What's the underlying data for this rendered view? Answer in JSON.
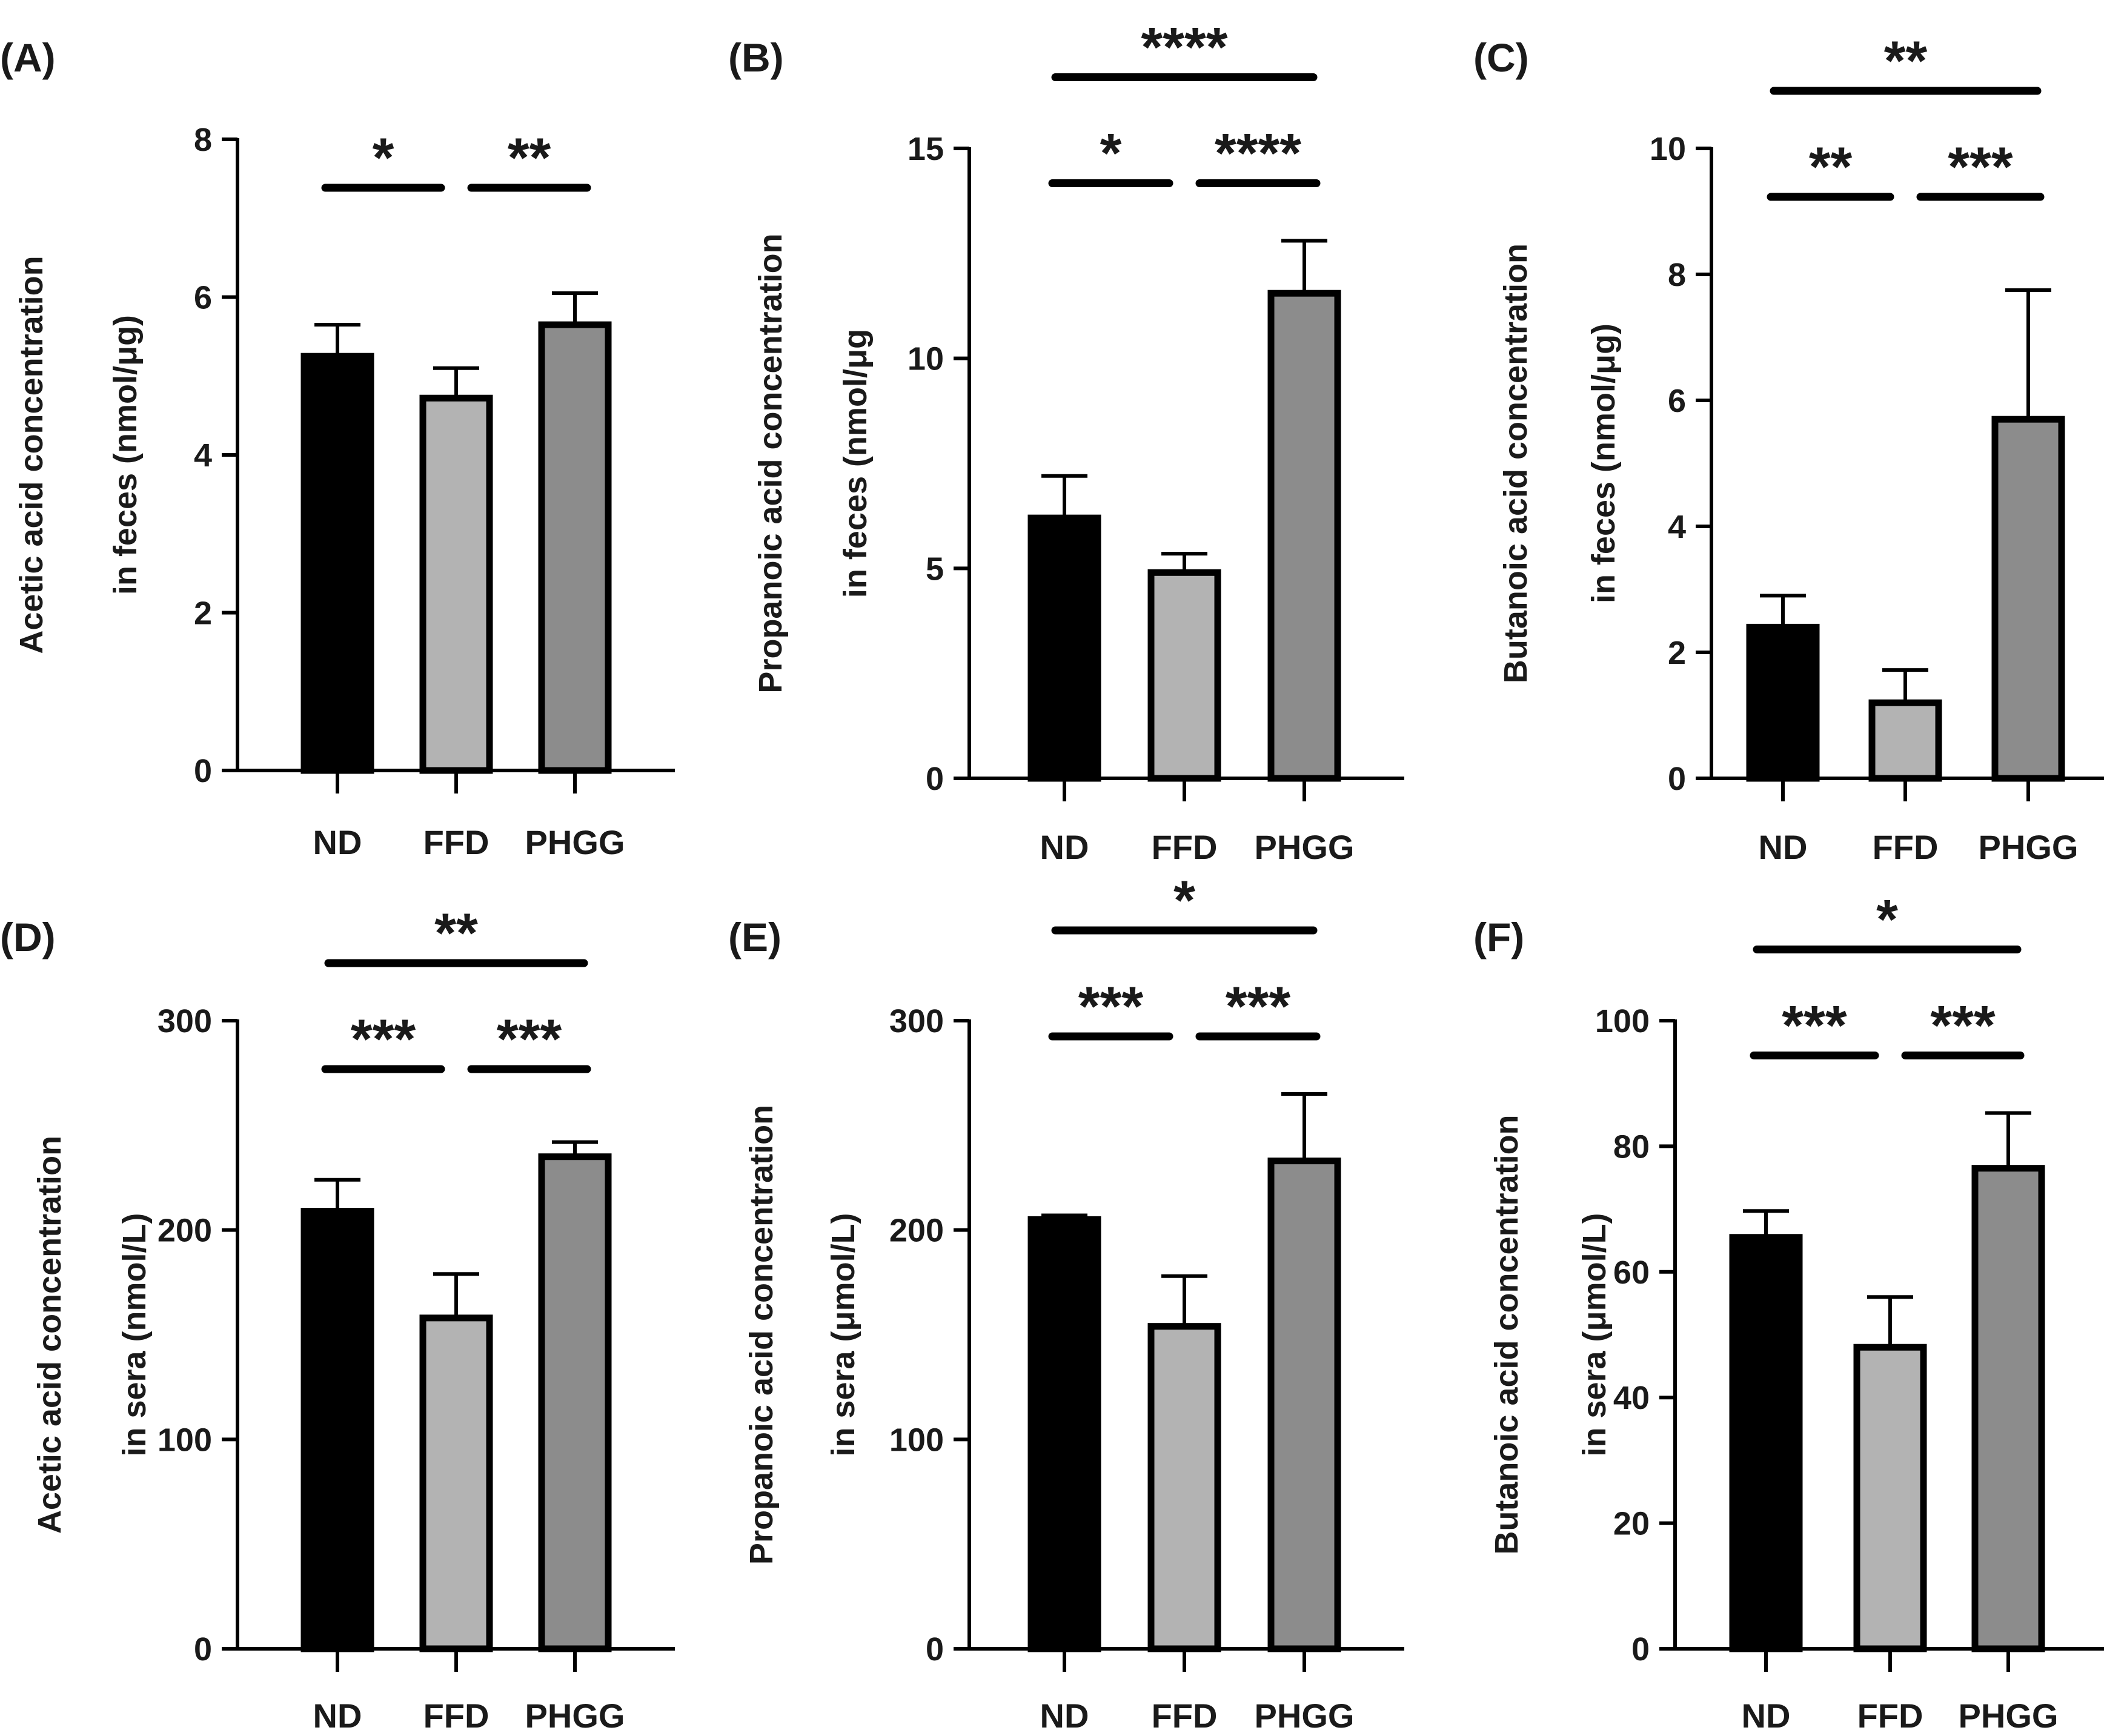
{
  "chart_data": [
    {
      "type": "bar",
      "panel_label": "(A)",
      "ylabel_lines": [
        "Acetic acid concentration",
        "in feces (nmol/μg)"
      ],
      "categories": [
        "ND",
        "FFD",
        "PHGG"
      ],
      "values": [
        5.25,
        4.72,
        5.65
      ],
      "errors": [
        0.4,
        0.38,
        0.4
      ],
      "colors": [
        "#000000",
        "#b3b3b3",
        "#8c8c8c"
      ],
      "ylim": [
        0,
        8
      ],
      "yticks": [
        "0",
        "2",
        "4",
        "6",
        "8"
      ],
      "significance": [
        {
          "from": 0,
          "to": 1,
          "label": "*",
          "level": 0
        },
        {
          "from": 1,
          "to": 2,
          "label": "**",
          "level": 0
        }
      ]
    },
    {
      "type": "bar",
      "panel_label": "(B)",
      "ylabel_lines": [
        "Propanoic acid concentration",
        "in feces (nmol/μg"
      ],
      "categories": [
        "ND",
        "FFD",
        "PHGG"
      ],
      "values": [
        6.2,
        4.9,
        11.55
      ],
      "errors": [
        1.0,
        0.45,
        1.25
      ],
      "colors": [
        "#000000",
        "#b3b3b3",
        "#8c8c8c"
      ],
      "ylim": [
        0,
        15
      ],
      "yticks": [
        "0",
        "5",
        "10",
        "15"
      ],
      "significance": [
        {
          "from": 0,
          "to": 1,
          "label": "*",
          "level": 0
        },
        {
          "from": 1,
          "to": 2,
          "label": "****",
          "level": 0
        },
        {
          "from": 0,
          "to": 2,
          "label": "****",
          "level": 1
        }
      ]
    },
    {
      "type": "bar",
      "panel_label": "(C)",
      "ylabel_lines": [
        "Butanoic acid  concentration",
        "in feces (nmol/μg)"
      ],
      "categories": [
        "ND",
        "FFD",
        "PHGG"
      ],
      "values": [
        2.4,
        1.2,
        5.7
      ],
      "errors": [
        0.5,
        0.52,
        2.05
      ],
      "colors": [
        "#000000",
        "#b3b3b3",
        "#8c8c8c"
      ],
      "ylim": [
        0,
        10
      ],
      "yticks": [
        "0",
        "2",
        "4",
        "6",
        "8",
        "10"
      ],
      "significance": [
        {
          "from": 0,
          "to": 1,
          "label": "**",
          "level": 0
        },
        {
          "from": 1,
          "to": 2,
          "label": "***",
          "level": 0
        },
        {
          "from": 0,
          "to": 2,
          "label": "**",
          "level": 1
        }
      ]
    },
    {
      "type": "bar",
      "panel_label": "(D)",
      "ylabel_lines": [
        "Acetic acid concentration",
        "in sera (nmol/L)"
      ],
      "categories": [
        "ND",
        "FFD",
        "PHGG"
      ],
      "values": [
        209,
        158,
        235
      ],
      "errors": [
        15,
        21,
        7
      ],
      "colors": [
        "#000000",
        "#b3b3b3",
        "#8c8c8c"
      ],
      "ylim": [
        0,
        300
      ],
      "yticks": [
        "0",
        "100",
        "200",
        "300"
      ],
      "significance": [
        {
          "from": 0,
          "to": 1,
          "label": "***",
          "level": 0
        },
        {
          "from": 1,
          "to": 2,
          "label": "***",
          "level": 0
        },
        {
          "from": 0,
          "to": 2,
          "label": "**",
          "level": 1
        }
      ]
    },
    {
      "type": "bar",
      "panel_label": "(E)",
      "ylabel_lines": [
        "Propanoic acid concentration",
        "in sera (μmol/L)"
      ],
      "categories": [
        "ND",
        "FFD",
        "PHGG"
      ],
      "values": [
        205,
        154,
        233
      ],
      "errors": [
        2,
        24,
        32
      ],
      "colors": [
        "#000000",
        "#b3b3b3",
        "#8c8c8c"
      ],
      "ylim": [
        0,
        300
      ],
      "yticks": [
        "0",
        "100",
        "200",
        "300"
      ],
      "significance": [
        {
          "from": 0,
          "to": 1,
          "label": "***",
          "level": 0
        },
        {
          "from": 1,
          "to": 2,
          "label": "***",
          "level": 0
        },
        {
          "from": 0,
          "to": 2,
          "label": "*",
          "level": 1
        }
      ]
    },
    {
      "type": "bar",
      "panel_label": "(F)",
      "ylabel_lines": [
        "Butanoic acid  concentration",
        "in sera (μmol/L)"
      ],
      "categories": [
        "ND",
        "FFD",
        "PHGG"
      ],
      "values": [
        65.5,
        48,
        76.5
      ],
      "errors": [
        4.2,
        8,
        8.8
      ],
      "colors": [
        "#000000",
        "#b3b3b3",
        "#8c8c8c"
      ],
      "ylim": [
        0,
        100
      ],
      "yticks": [
        "0",
        "20",
        "40",
        "60",
        "80",
        "100"
      ],
      "significance": [
        {
          "from": 0,
          "to": 1,
          "label": "***",
          "level": 0
        },
        {
          "from": 1,
          "to": 2,
          "label": "***",
          "level": 0
        },
        {
          "from": 0,
          "to": 2,
          "label": "*",
          "level": 1
        }
      ]
    }
  ]
}
